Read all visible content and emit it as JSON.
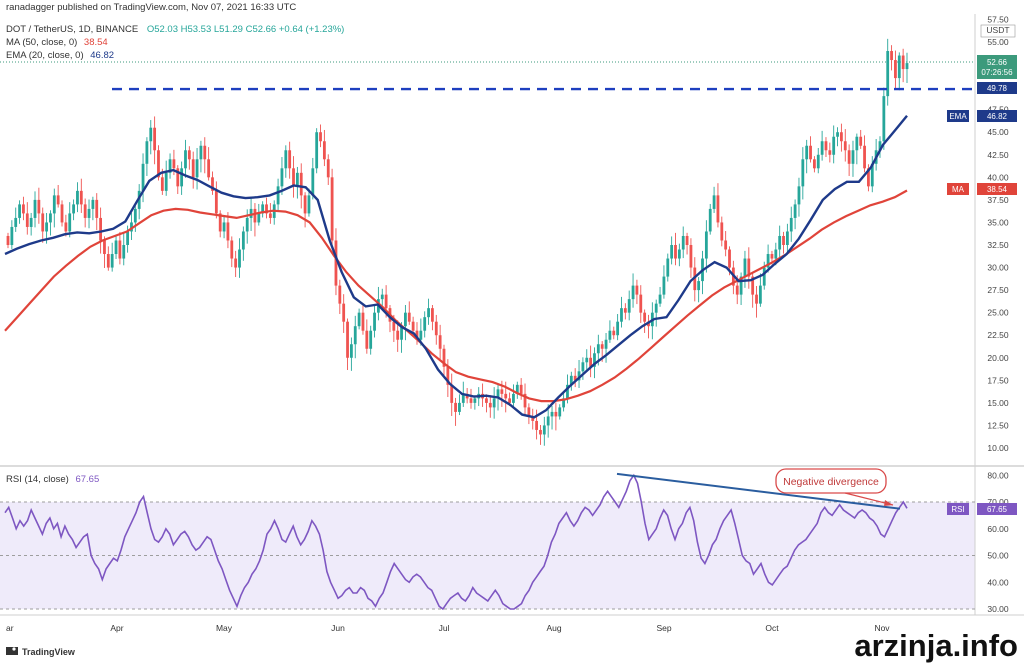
{
  "header": {
    "published": "ranadagger published on TradingView.com, Nov 07, 2021 16:33 UTC",
    "symbol": "DOT / TetherUS, 1D, BINANCE",
    "ohlc": "O52.03 H53.53 L51.29 C52.66 +0.64 (+1.23%)",
    "ma_label": "MA (50, close, 0)",
    "ma_value": "38.54",
    "ema_label": "EMA (20, close, 0)",
    "ema_value": "46.82"
  },
  "price_axis": {
    "currency": "USDT",
    "ticks": [
      "57.50",
      "55.00",
      "52.50",
      "47.50",
      "45.00",
      "42.50",
      "40.00",
      "37.50",
      "35.00",
      "32.50",
      "30.00",
      "27.50",
      "25.00",
      "22.50",
      "20.00",
      "17.50",
      "15.00",
      "12.50",
      "10.00"
    ],
    "last_price": "52.66",
    "countdown": "07:26:56",
    "resistance_value": "49.78",
    "ema_tag": "EMA",
    "ema_tag_value": "46.82",
    "ma_tag": "MA",
    "ma_tag_value": "38.54"
  },
  "rsi": {
    "label": "RSI (14, close)",
    "value": "67.65",
    "tag": "RSI",
    "tag_value": "67.65",
    "ticks": [
      "80.00",
      "70.00",
      "60.00",
      "50.00",
      "40.00",
      "30.00"
    ],
    "annotation": "Negative divergence"
  },
  "x_labels": [
    "ar",
    "Apr",
    "May",
    "Jun",
    "Jul",
    "Aug",
    "Sep",
    "Oct",
    "Nov"
  ],
  "footer": {
    "brand": "TradingView",
    "watermark": "arzinja.info"
  },
  "colors": {
    "up": "#26a69a",
    "down": "#ef5350",
    "ema": "#1e3a8a",
    "ma": "#e0443a",
    "rsi": "#7e57c2",
    "resistance": "#1e3fbf",
    "divergence_line": "#2a5d9f",
    "annotation": "#d94a4a",
    "last_price_tag": "#3c9a7c"
  },
  "chart_data": {
    "type": "candlestick",
    "x_range": [
      "Mar 2021",
      "Nov 2021"
    ],
    "ylim": [
      8.5,
      58
    ],
    "price_candles": [
      [
        33.5,
        32.5
      ],
      [
        32.5,
        34.5
      ],
      [
        34.5,
        35.5
      ],
      [
        35.5,
        37
      ],
      [
        37,
        36
      ],
      [
        36,
        34.5
      ],
      [
        34.5,
        35.5
      ],
      [
        35.5,
        37.5
      ],
      [
        37.5,
        36
      ],
      [
        36,
        34
      ],
      [
        34,
        35
      ],
      [
        35,
        36
      ],
      [
        36,
        38
      ],
      [
        38,
        37
      ],
      [
        37,
        35
      ],
      [
        35,
        34
      ],
      [
        34,
        36
      ],
      [
        36,
        37
      ],
      [
        37,
        38.5
      ],
      [
        38.5,
        37
      ],
      [
        37,
        35.5
      ],
      [
        35.5,
        36.5
      ],
      [
        36.5,
        37.5
      ],
      [
        37.5,
        35.5
      ],
      [
        35.5,
        33
      ],
      [
        33,
        31.5
      ],
      [
        31.5,
        30
      ],
      [
        30,
        31.5
      ],
      [
        31.5,
        33
      ],
      [
        33,
        31
      ],
      [
        31,
        32.5
      ],
      [
        32.5,
        34
      ],
      [
        34,
        35
      ],
      [
        35,
        36.5
      ],
      [
        36.5,
        38.5
      ],
      [
        38.5,
        41.5
      ],
      [
        41.5,
        44
      ],
      [
        44,
        45.5
      ],
      [
        45.5,
        43
      ],
      [
        43,
        40
      ],
      [
        40,
        38.5
      ],
      [
        38.5,
        40.5
      ],
      [
        40.5,
        42
      ],
      [
        42,
        41
      ],
      [
        41,
        39
      ],
      [
        39,
        41
      ],
      [
        41,
        43
      ],
      [
        43,
        42
      ],
      [
        42,
        40
      ],
      [
        40,
        42
      ],
      [
        42,
        43.5
      ],
      [
        43.5,
        42
      ],
      [
        42,
        40
      ],
      [
        40,
        38.5
      ],
      [
        38.5,
        36
      ],
      [
        36,
        34
      ],
      [
        34,
        35
      ],
      [
        35,
        33
      ],
      [
        33,
        31
      ],
      [
        31,
        30
      ],
      [
        30,
        32
      ],
      [
        32,
        34
      ],
      [
        34,
        35.5
      ],
      [
        35.5,
        36.5
      ],
      [
        36.5,
        35
      ],
      [
        35,
        36
      ],
      [
        36,
        37
      ],
      [
        37,
        36
      ],
      [
        36,
        35.5
      ],
      [
        35.5,
        37
      ],
      [
        37,
        39
      ],
      [
        39,
        41
      ],
      [
        41,
        43
      ],
      [
        43,
        41
      ],
      [
        41,
        39
      ],
      [
        39,
        40.5
      ],
      [
        40.5,
        38
      ],
      [
        38,
        36
      ],
      [
        36,
        38
      ],
      [
        38,
        41
      ],
      [
        41,
        45
      ],
      [
        45,
        44
      ],
      [
        44,
        42
      ],
      [
        42,
        40
      ],
      [
        40,
        33
      ],
      [
        33,
        28
      ],
      [
        28,
        26
      ],
      [
        26,
        24
      ],
      [
        24,
        20
      ],
      [
        20,
        21.5
      ],
      [
        21.5,
        23.5
      ],
      [
        23.5,
        25
      ],
      [
        25,
        23
      ],
      [
        23,
        21
      ],
      [
        21,
        23
      ],
      [
        23,
        25
      ],
      [
        25,
        26.5
      ],
      [
        26.5,
        27
      ],
      [
        27,
        25.5
      ],
      [
        25.5,
        24
      ],
      [
        24,
        23
      ],
      [
        23,
        22
      ],
      [
        22,
        23.5
      ],
      [
        23.5,
        25
      ],
      [
        25,
        24
      ],
      [
        24,
        23
      ],
      [
        23,
        22
      ],
      [
        22,
        23
      ],
      [
        23,
        24.5
      ],
      [
        24.5,
        25.5
      ],
      [
        25.5,
        24
      ],
      [
        24,
        22.5
      ],
      [
        22.5,
        21
      ],
      [
        21,
        19
      ],
      [
        19,
        17
      ],
      [
        17,
        15
      ],
      [
        15,
        14
      ],
      [
        14,
        15
      ],
      [
        15,
        16
      ],
      [
        16,
        15.5
      ],
      [
        15.5,
        15
      ],
      [
        15,
        15.5
      ],
      [
        15.5,
        16
      ],
      [
        16,
        15.5
      ],
      [
        15.5,
        15
      ],
      [
        15,
        14.5
      ],
      [
        14.5,
        15.5
      ],
      [
        15.5,
        16.5
      ],
      [
        16.5,
        16
      ],
      [
        16,
        15.5
      ],
      [
        15.5,
        15
      ],
      [
        15,
        16
      ],
      [
        16,
        17
      ],
      [
        17,
        16
      ],
      [
        16,
        14.5
      ],
      [
        14.5,
        13.5
      ],
      [
        13.5,
        13
      ],
      [
        13,
        12
      ],
      [
        12,
        11.5
      ],
      [
        11.5,
        12.5
      ],
      [
        12.5,
        13.5
      ],
      [
        13.5,
        14
      ],
      [
        14,
        13.5
      ],
      [
        13.5,
        14.5
      ],
      [
        14.5,
        15.5
      ],
      [
        15.5,
        17
      ],
      [
        17,
        18
      ],
      [
        18,
        17.5
      ],
      [
        17.5,
        18.5
      ],
      [
        18.5,
        19.5
      ],
      [
        19.5,
        20
      ],
      [
        20,
        19
      ],
      [
        19,
        20.5
      ],
      [
        20.5,
        21.5
      ],
      [
        21.5,
        21
      ],
      [
        21,
        22
      ],
      [
        22,
        23
      ],
      [
        23,
        22.5
      ],
      [
        22.5,
        24
      ],
      [
        24,
        25.5
      ],
      [
        25.5,
        25
      ],
      [
        25,
        26.5
      ],
      [
        26.5,
        28
      ],
      [
        28,
        27
      ],
      [
        27,
        25
      ],
      [
        25,
        24
      ],
      [
        24,
        23.5
      ],
      [
        23.5,
        25
      ],
      [
        25,
        26
      ],
      [
        26,
        27
      ],
      [
        27,
        29
      ],
      [
        29,
        31
      ],
      [
        31,
        32.5
      ],
      [
        32.5,
        31
      ],
      [
        31,
        32
      ],
      [
        32,
        33.5
      ],
      [
        33.5,
        32.5
      ],
      [
        32.5,
        30
      ],
      [
        30,
        27.5
      ],
      [
        27.5,
        28.5
      ],
      [
        28.5,
        31
      ],
      [
        31,
        34
      ],
      [
        34,
        36.5
      ],
      [
        36.5,
        38
      ],
      [
        38,
        35
      ],
      [
        35,
        33
      ],
      [
        33,
        32
      ],
      [
        32,
        30
      ],
      [
        30,
        28
      ],
      [
        28,
        27
      ],
      [
        27,
        29
      ],
      [
        29,
        31
      ],
      [
        31,
        29
      ],
      [
        29,
        27
      ],
      [
        27,
        26
      ],
      [
        26,
        28
      ],
      [
        28,
        30
      ],
      [
        30,
        31.5
      ],
      [
        31.5,
        31
      ],
      [
        31,
        32
      ],
      [
        32,
        33.5
      ],
      [
        33.5,
        32.5
      ],
      [
        32.5,
        34
      ],
      [
        34,
        35.5
      ],
      [
        35.5,
        37
      ],
      [
        37,
        39
      ],
      [
        39,
        42
      ],
      [
        42,
        43.5
      ],
      [
        43.5,
        42
      ],
      [
        42,
        41
      ],
      [
        41,
        42.5
      ],
      [
        42.5,
        44
      ],
      [
        44,
        43
      ],
      [
        43,
        42.5
      ],
      [
        42.5,
        44.5
      ],
      [
        44.5,
        45
      ],
      [
        45,
        44
      ],
      [
        44,
        43
      ],
      [
        43,
        41.5
      ],
      [
        41.5,
        43
      ],
      [
        43,
        44.5
      ],
      [
        44.5,
        43.5
      ],
      [
        43.5,
        41
      ],
      [
        41,
        39
      ],
      [
        39,
        41.5
      ],
      [
        41.5,
        43
      ],
      [
        43,
        44
      ],
      [
        44,
        49
      ],
      [
        49,
        54
      ],
      [
        54,
        53
      ],
      [
        53,
        51
      ],
      [
        51,
        53.5
      ],
      [
        53.5,
        52
      ],
      [
        52,
        52.66
      ]
    ],
    "ema20": [
      31.5,
      32.1,
      32.6,
      33.0,
      33.3,
      33.7,
      33.9,
      33.8,
      34.0,
      34.3,
      35.1,
      37.4,
      39.6,
      40.5,
      40.8,
      40.2,
      39.7,
      39.0,
      38.3,
      37.9,
      37.7,
      37.8,
      38.0,
      38.5,
      39.1,
      38.9,
      37.5,
      33.0,
      29.5,
      26.7,
      25.7,
      25.9,
      24.5,
      23.4,
      22.7,
      21.0,
      18.7,
      17.1,
      16.0,
      15.7,
      15.8,
      15.6,
      14.8,
      13.7,
      13.4,
      14.2,
      15.6,
      16.9,
      18.1,
      19.3,
      20.3,
      21.4,
      22.5,
      23.5,
      24.3,
      24.5,
      26.4,
      28.5,
      29.7,
      30.6,
      30.0,
      28.5,
      28.6,
      29.2,
      30.4,
      31.5,
      33.2,
      35.3,
      37.5,
      38.7,
      39.5,
      39.5,
      41.1,
      43.6,
      45.2,
      46.82
    ],
    "ma50": [
      23.0,
      24.5,
      26.0,
      27.5,
      29.0,
      30.2,
      31.3,
      32.3,
      33.0,
      33.5,
      34.0,
      34.9,
      35.8,
      36.3,
      36.5,
      36.4,
      36.1,
      35.9,
      35.7,
      35.5,
      35.8,
      36.1,
      36.3,
      36.2,
      35.8,
      35.0,
      33.3,
      31.3,
      29.5,
      28.0,
      26.8,
      25.6,
      24.2,
      23.0,
      21.8,
      20.5,
      19.4,
      18.4,
      17.9,
      17.6,
      17.3,
      16.8,
      16.1,
      15.5,
      15.2,
      15.2,
      15.4,
      15.8,
      16.3,
      17.0,
      17.8,
      18.8,
      19.9,
      21.1,
      22.3,
      23.5,
      24.7,
      25.8,
      26.9,
      27.8,
      28.5,
      29.2,
      29.9,
      30.6,
      31.4,
      32.3,
      33.2,
      34.2,
      35.0,
      35.7,
      36.3,
      36.9,
      37.3,
      37.8,
      38.54
    ],
    "resistance": 49.78,
    "last": 52.66,
    "rsi_ylim": [
      27,
      82
    ],
    "rsi_levels": [
      30,
      50,
      70
    ],
    "rsi_values": [
      66,
      68,
      64,
      60,
      63,
      61,
      63,
      67,
      64,
      61,
      58,
      62,
      64,
      60,
      62,
      57,
      61,
      58,
      56,
      53,
      55,
      57,
      58,
      50,
      47,
      45,
      41,
      45,
      47,
      49,
      48,
      52,
      57,
      60,
      63,
      66,
      70,
      72,
      66,
      60,
      56,
      55,
      57,
      60,
      58,
      54,
      56,
      58,
      59,
      57,
      54,
      52,
      53,
      55,
      57,
      56,
      52,
      48,
      45,
      41,
      37,
      34,
      31,
      35,
      38,
      40,
      43,
      45,
      48,
      52,
      58,
      60,
      63,
      60,
      56,
      55,
      58,
      61,
      57,
      54,
      56,
      59,
      63,
      61,
      58,
      52,
      44,
      40,
      37,
      34,
      35,
      37,
      38,
      36,
      36,
      38,
      37,
      34,
      33,
      31,
      34,
      36,
      40,
      44,
      47,
      45,
      43,
      41,
      40,
      42,
      43,
      42,
      40,
      38,
      37,
      34,
      31,
      30,
      32,
      34,
      35,
      36,
      34,
      33,
      35,
      38,
      36,
      35,
      34,
      33,
      35,
      37,
      35,
      32,
      31,
      30,
      30,
      31,
      32,
      35,
      37,
      40,
      42,
      44,
      46,
      50,
      55,
      58,
      62,
      64,
      66,
      63,
      61,
      63,
      66,
      68,
      67,
      65,
      67,
      69,
      72,
      74,
      72,
      70,
      68,
      71,
      74,
      78,
      80,
      77,
      70,
      62,
      56,
      58,
      60,
      64,
      67,
      65,
      60,
      56,
      60,
      62,
      66,
      68,
      63,
      55,
      49,
      47,
      50,
      54,
      56,
      60,
      63,
      65,
      67,
      62,
      56,
      50,
      48,
      47,
      43,
      45,
      47,
      43,
      40,
      39,
      41,
      43,
      45,
      46,
      49,
      52,
      54,
      55,
      56,
      58,
      60,
      62,
      66,
      68,
      66,
      65,
      67,
      69,
      67,
      66,
      65,
      64,
      66,
      67,
      66,
      64,
      63,
      61,
      58,
      57,
      60,
      63,
      66,
      68,
      70,
      67.65
    ],
    "divergence_line": [
      [
        617,
        80.5
      ],
      [
        900,
        67.5
      ]
    ],
    "price_ticks": [
      57.5,
      55,
      52.5,
      47.5,
      45,
      42.5,
      40,
      37.5,
      35,
      32.5,
      30,
      27.5,
      25,
      22.5,
      20,
      17.5,
      15,
      12.5,
      10
    ]
  }
}
